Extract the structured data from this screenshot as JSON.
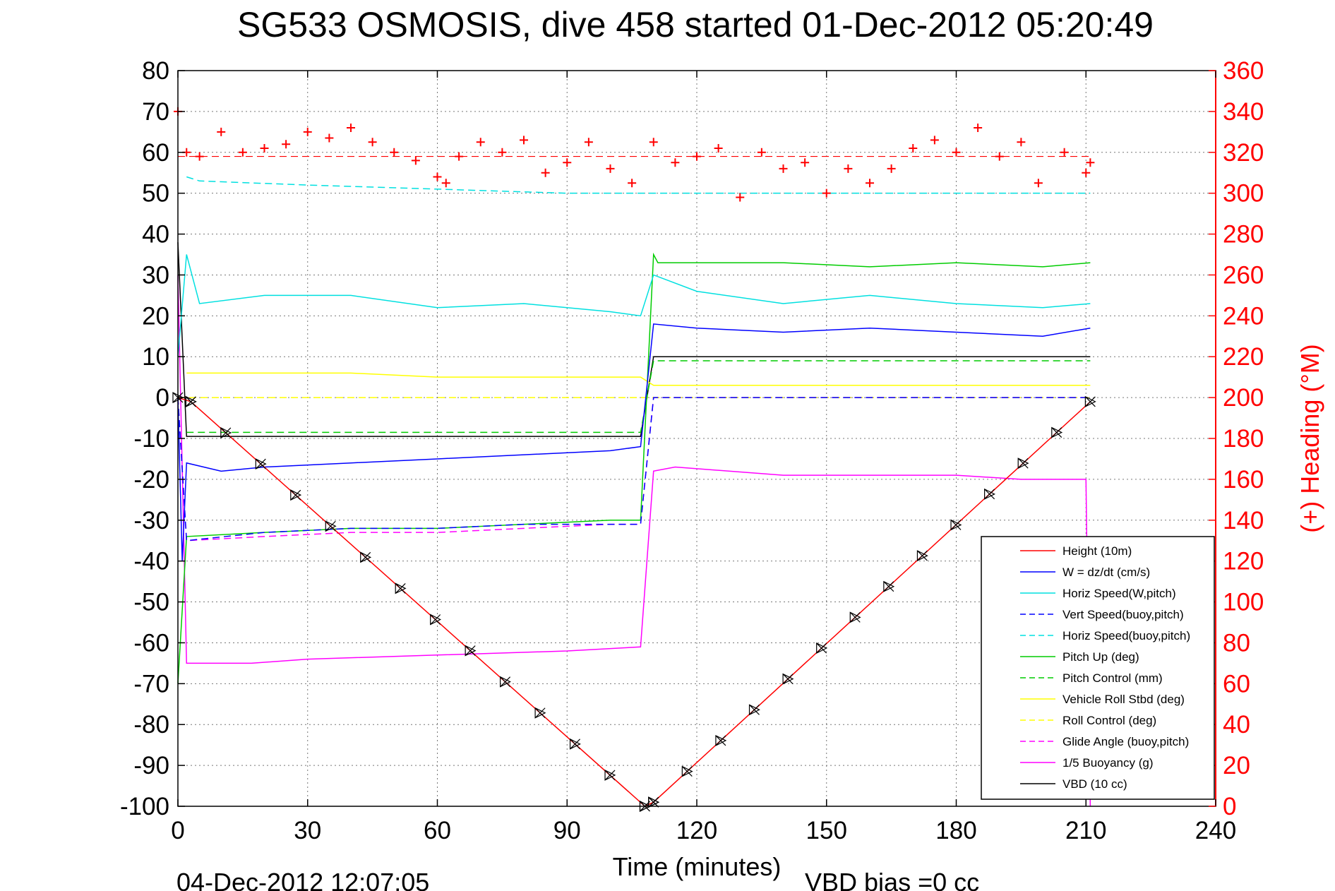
{
  "chart_data": {
    "type": "line",
    "title": "SG533 OSMOSIS, dive 458 started 01-Dec-2012 05:20:49",
    "xlabel": "Time (minutes)",
    "ylabel_right": "(+) Heading (°M)",
    "footer_left": "04-Dec-2012 12:07:05",
    "footer_right": "VBD bias =0 cc",
    "xlim": [
      0,
      240
    ],
    "ylim_left": [
      -100,
      80
    ],
    "ylim_right": [
      0,
      360
    ],
    "x_ticks": [
      "0",
      "30",
      "60",
      "90",
      "120",
      "150",
      "180",
      "210",
      "240"
    ],
    "y_ticks_left": [
      "80",
      "70",
      "60",
      "50",
      "40",
      "30",
      "20",
      "10",
      "0",
      "-10",
      "-20",
      "-30",
      "-40",
      "-50",
      "-60",
      "-70",
      "-80",
      "-90",
      "-100"
    ],
    "y_ticks_right": [
      "360",
      "340",
      "320",
      "300",
      "280",
      "260",
      "240",
      "220",
      "200",
      "180",
      "160",
      "140",
      "120",
      "100",
      "80",
      "60",
      "40",
      "20",
      "0"
    ],
    "grid": true,
    "legend_position": "bottom-right",
    "series": [
      {
        "name": "Height (10m)",
        "color": "#ff0000",
        "style": "solid",
        "x": [
          0,
          3,
          108,
          110,
          211
        ],
        "y": [
          0,
          -1,
          -100,
          -99,
          -1
        ]
      },
      {
        "name": "W = dz/dt (cm/s)",
        "color": "#0000ff",
        "style": "solid",
        "x": [
          0,
          1,
          2,
          10,
          20,
          40,
          60,
          80,
          100,
          107,
          110,
          120,
          140,
          160,
          180,
          200,
          211
        ],
        "y": [
          0,
          -40,
          -16,
          -18,
          -17,
          -16,
          -15,
          -14,
          -13,
          -12,
          18,
          17,
          16,
          17,
          16,
          15,
          17
        ]
      },
      {
        "name": "Horiz Speed(W,pitch)",
        "color": "#00e0e0",
        "style": "solid",
        "x": [
          0,
          2,
          5,
          20,
          40,
          60,
          80,
          100,
          107,
          110,
          120,
          140,
          160,
          180,
          200,
          211
        ],
        "y": [
          10,
          35,
          23,
          25,
          25,
          22,
          23,
          21,
          20,
          30,
          26,
          23,
          25,
          23,
          22,
          23
        ]
      },
      {
        "name": "Vert Speed(buoy,pitch)",
        "color": "#0000ff",
        "style": "dashed",
        "x": [
          0,
          2,
          20,
          40,
          60,
          80,
          100,
          107,
          110,
          211
        ],
        "y": [
          0,
          -35,
          -33,
          -32,
          -32,
          -31,
          -31,
          -31,
          0,
          0
        ]
      },
      {
        "name": "Horiz Speed(buoy,pitch)",
        "color": "#00e0e0",
        "style": "dashed",
        "x": [
          2,
          5,
          30,
          60,
          90,
          107,
          211
        ],
        "y": [
          54,
          53,
          52,
          51,
          50,
          50,
          50
        ]
      },
      {
        "name": "Pitch Up (deg)",
        "color": "#00cc00",
        "style": "solid",
        "x": [
          0,
          2,
          20,
          40,
          60,
          80,
          100,
          107,
          110,
          111,
          140,
          160,
          180,
          200,
          211
        ],
        "y": [
          -70,
          -34,
          -33,
          -32,
          -32,
          -31,
          -30,
          -30,
          35,
          33,
          33,
          32,
          33,
          32,
          33
        ]
      },
      {
        "name": "Pitch Control (mm)",
        "color": "#00cc00",
        "style": "dashed",
        "x": [
          2,
          107,
          110,
          211
        ],
        "y": [
          -8.5,
          -8.5,
          9,
          9
        ]
      },
      {
        "name": "Vehicle Roll Stbd (deg)",
        "color": "#ffff00",
        "style": "solid",
        "x": [
          2,
          20,
          40,
          60,
          80,
          100,
          107,
          110,
          140,
          170,
          190,
          200,
          211
        ],
        "y": [
          6,
          6,
          6,
          5,
          5,
          5,
          5,
          3,
          3,
          3,
          3,
          3,
          3
        ]
      },
      {
        "name": "Roll Control (deg)",
        "color": "#ffff00",
        "style": "dashed",
        "x": [
          0,
          107,
          110,
          211
        ],
        "y": [
          0,
          0,
          0,
          0
        ]
      },
      {
        "name": "Glide Angle (buoy,pitch)",
        "color": "#ff00ff",
        "style": "dashed",
        "x": [
          0,
          2,
          20,
          40,
          60,
          80,
          100,
          107,
          110,
          211
        ],
        "y": [
          0,
          -35,
          -34,
          -33,
          -33,
          -32,
          -31,
          -31,
          0,
          0
        ]
      },
      {
        "name": "1/5 Buoyancy (g)",
        "color": "#ff00ff",
        "style": "solid",
        "x": [
          0,
          2,
          17,
          30,
          60,
          90,
          107,
          110,
          115,
          140,
          160,
          180,
          195,
          210,
          211
        ],
        "y": [
          30,
          -65,
          -65,
          -64,
          -63,
          -62,
          -61,
          -18,
          -17,
          -19,
          -19,
          -19,
          -20,
          -20,
          -100
        ]
      },
      {
        "name": "VBD (10 cc)",
        "color": "#000000",
        "style": "solid",
        "x": [
          0,
          2,
          107,
          110,
          211
        ],
        "y": [
          38,
          -9.5,
          -9.5,
          10,
          10
        ]
      }
    ],
    "heading_series": {
      "name": "(+) Heading (°M)",
      "color": "#ff0000",
      "marker": "+",
      "axis": "right",
      "x": [
        0,
        2,
        5,
        10,
        15,
        20,
        25,
        30,
        35,
        40,
        45,
        50,
        55,
        60,
        62,
        65,
        70,
        75,
        80,
        85,
        90,
        95,
        100,
        105,
        110,
        115,
        120,
        125,
        130,
        135,
        140,
        145,
        150,
        155,
        160,
        165,
        170,
        175,
        180,
        185,
        190,
        195,
        199,
        205,
        210,
        211
      ],
      "y": [
        340,
        320,
        318,
        330,
        320,
        322,
        324,
        330,
        327,
        332,
        325,
        320,
        316,
        308,
        305,
        318,
        325,
        320,
        326,
        310,
        315,
        325,
        312,
        305,
        325,
        315,
        318,
        322,
        298,
        320,
        312,
        315,
        300,
        312,
        305,
        312,
        322,
        326,
        320,
        332,
        318,
        325,
        305,
        320,
        310,
        315
      ]
    },
    "heading_reference": {
      "color": "#ff0000",
      "style": "dashed",
      "value": 318
    }
  }
}
